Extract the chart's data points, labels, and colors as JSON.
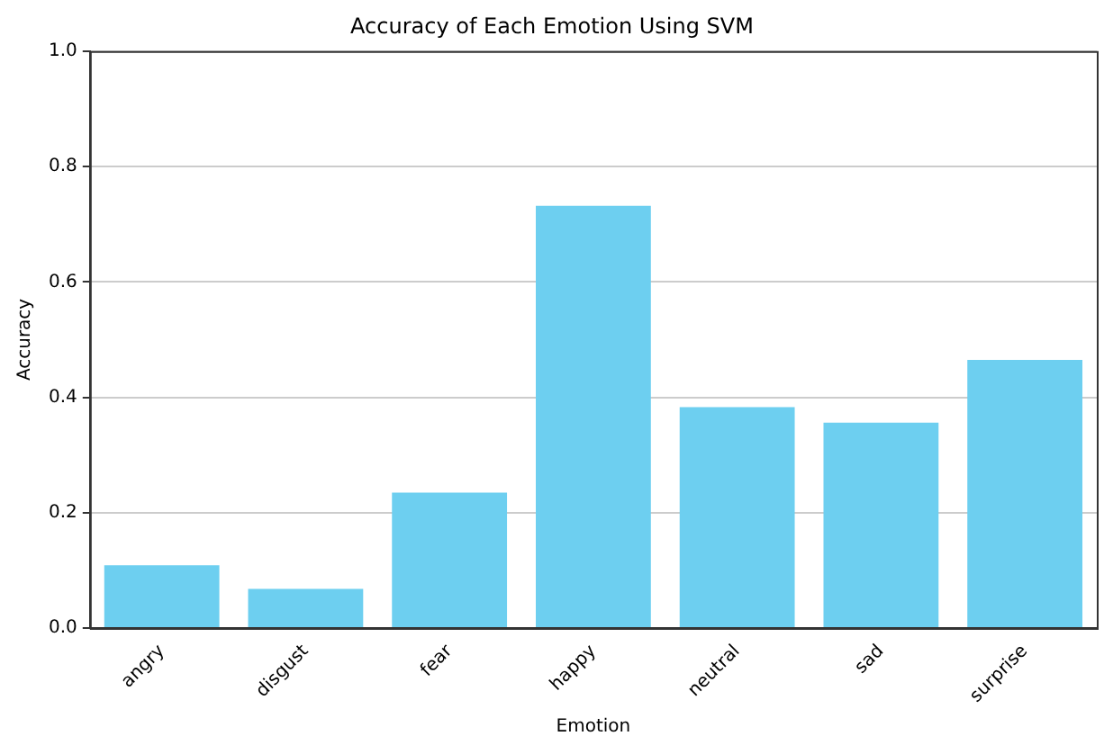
{
  "chart_data": {
    "type": "bar",
    "title": "Accuracy of Each Emotion Using SVM",
    "xlabel": "Emotion",
    "ylabel": "Accuracy",
    "categories": [
      "angry",
      "disgust",
      "fear",
      "happy",
      "neutral",
      "sad",
      "surprise"
    ],
    "values": [
      0.109,
      0.068,
      0.235,
      0.732,
      0.383,
      0.356,
      0.465
    ],
    "color": "#6dcff0",
    "ylim": [
      0,
      1
    ],
    "yticks": [
      {
        "value": 0,
        "label": "0.0"
      },
      {
        "value": 0.2,
        "label": "0.2"
      },
      {
        "value": 0.4,
        "label": "0.4"
      },
      {
        "value": 0.6,
        "label": "0.6"
      },
      {
        "value": 0.8,
        "label": "0.8"
      },
      {
        "value": 1,
        "label": "1.0"
      }
    ],
    "grid": "y"
  }
}
